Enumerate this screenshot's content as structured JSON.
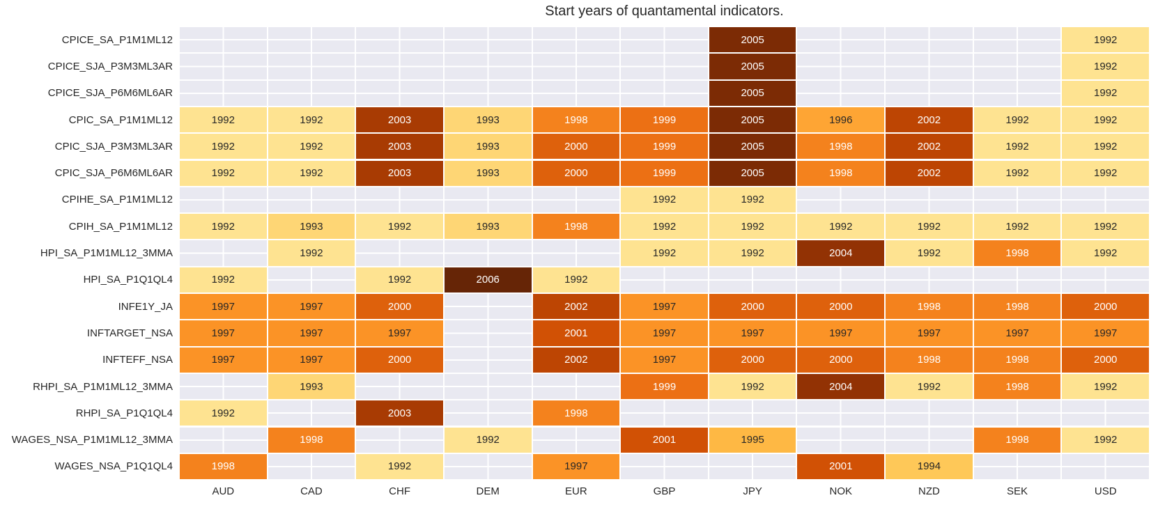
{
  "chart_data": {
    "type": "heatmap",
    "title": "Start years of quantamental indicators.",
    "columns": [
      "AUD",
      "CAD",
      "CHF",
      "DEM",
      "EUR",
      "GBP",
      "JPY",
      "NOK",
      "NZD",
      "SEK",
      "USD"
    ],
    "rows": [
      {
        "label": "CPICE_SA_P1M1ML12",
        "values": [
          null,
          null,
          null,
          null,
          null,
          null,
          2005,
          null,
          null,
          null,
          1992
        ]
      },
      {
        "label": "CPICE_SJA_P3M3ML3AR",
        "values": [
          null,
          null,
          null,
          null,
          null,
          null,
          2005,
          null,
          null,
          null,
          1992
        ]
      },
      {
        "label": "CPICE_SJA_P6M6ML6AR",
        "values": [
          null,
          null,
          null,
          null,
          null,
          null,
          2005,
          null,
          null,
          null,
          1992
        ]
      },
      {
        "label": "CPIC_SA_P1M1ML12",
        "values": [
          1992,
          1992,
          2003,
          1993,
          1998,
          1999,
          2005,
          1996,
          2002,
          1992,
          1992
        ]
      },
      {
        "label": "CPIC_SJA_P3M3ML3AR",
        "values": [
          1992,
          1992,
          2003,
          1993,
          2000,
          1999,
          2005,
          1998,
          2002,
          1992,
          1992
        ]
      },
      {
        "label": "CPIC_SJA_P6M6ML6AR",
        "values": [
          1992,
          1992,
          2003,
          1993,
          2000,
          1999,
          2005,
          1998,
          2002,
          1992,
          1992
        ]
      },
      {
        "label": "CPIHE_SA_P1M1ML12",
        "values": [
          null,
          null,
          null,
          null,
          null,
          1992,
          1992,
          null,
          null,
          null,
          null
        ]
      },
      {
        "label": "CPIH_SA_P1M1ML12",
        "values": [
          1992,
          1993,
          1992,
          1993,
          1998,
          1992,
          1992,
          1992,
          1992,
          1992,
          1992
        ]
      },
      {
        "label": "HPI_SA_P1M1ML12_3MMA",
        "values": [
          null,
          1992,
          null,
          null,
          null,
          1992,
          1992,
          2004,
          1992,
          1998,
          1992
        ]
      },
      {
        "label": "HPI_SA_P1Q1QL4",
        "values": [
          1992,
          null,
          1992,
          2006,
          1992,
          null,
          null,
          null,
          null,
          null,
          null
        ]
      },
      {
        "label": "INFE1Y_JA",
        "values": [
          1997,
          1997,
          2000,
          null,
          2002,
          1997,
          2000,
          2000,
          1998,
          1998,
          2000
        ]
      },
      {
        "label": "INFTARGET_NSA",
        "values": [
          1997,
          1997,
          1997,
          null,
          2001,
          1997,
          1997,
          1997,
          1997,
          1997,
          1997
        ]
      },
      {
        "label": "INFTEFF_NSA",
        "values": [
          1997,
          1997,
          2000,
          null,
          2002,
          1997,
          2000,
          2000,
          1998,
          1998,
          2000
        ]
      },
      {
        "label": "RHPI_SA_P1M1ML12_3MMA",
        "values": [
          null,
          1993,
          null,
          null,
          null,
          1999,
          1992,
          2004,
          1992,
          1998,
          1992
        ]
      },
      {
        "label": "RHPI_SA_P1Q1QL4",
        "values": [
          1992,
          null,
          2003,
          null,
          1998,
          null,
          null,
          null,
          null,
          null,
          null
        ]
      },
      {
        "label": "WAGES_NSA_P1M1ML12_3MMA",
        "values": [
          null,
          1998,
          null,
          1992,
          null,
          2001,
          1995,
          null,
          null,
          1998,
          1992
        ]
      },
      {
        "label": "WAGES_NSA_P1Q1QL4",
        "values": [
          1998,
          null,
          1992,
          null,
          1997,
          null,
          null,
          2001,
          1994,
          null,
          null
        ]
      }
    ],
    "value_range": [
      1992,
      2006
    ],
    "colormap": "YlOrBr",
    "year_colors": {
      "1992": "#fee391",
      "1993": "#fed675",
      "1994": "#fec858",
      "1995": "#feb844",
      "1996": "#fea534",
      "1997": "#fb9326",
      "1998": "#f4821d",
      "1999": "#ec7014",
      "2000": "#de610c",
      "2001": "#d15105",
      "2002": "#bd4503",
      "2003": "#a83b03",
      "2004": "#923204",
      "2005": "#7c2b05",
      "2006": "#662506"
    },
    "legend": "none",
    "grid": "on",
    "empty_cell_meaning": "no data"
  },
  "style": {
    "figure_bg": "#ffffff",
    "plot_bg": "#e9e9f1",
    "grid_line_color": "#ffffff",
    "annot_text_dark": "#262626",
    "annot_text_light": "#ffffff",
    "white_text_min_year": 1998,
    "label_color": "#262626"
  }
}
